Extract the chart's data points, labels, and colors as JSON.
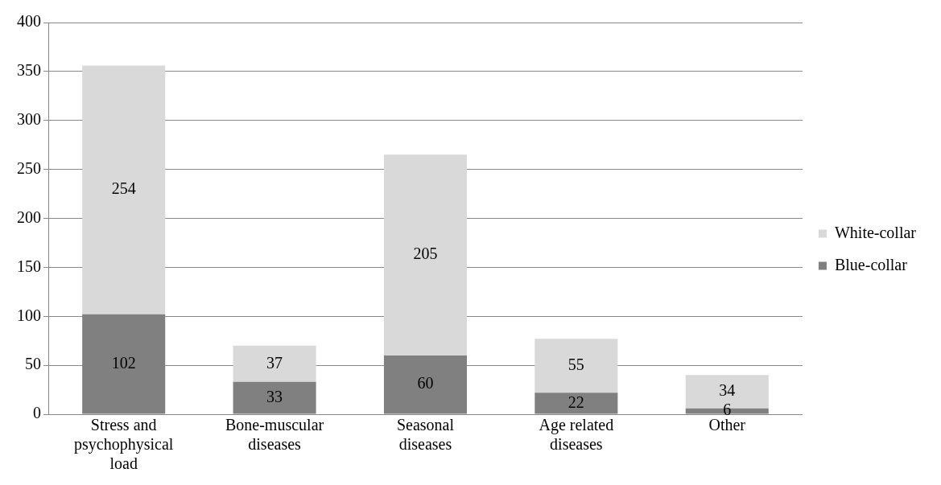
{
  "chart_data": {
    "type": "bar",
    "stacked": true,
    "categories": [
      "Stress and psychophysical load",
      "Bone-muscular diseases",
      "Seasonal diseases",
      "Age related diseases",
      "Other"
    ],
    "series": [
      {
        "name": "Blue-collar",
        "color": "#808080",
        "values": [
          102,
          33,
          60,
          22,
          6
        ]
      },
      {
        "name": "White-collar",
        "color": "#d9d9d9",
        "values": [
          254,
          37,
          205,
          55,
          34
        ]
      }
    ],
    "ylim": [
      0,
      400
    ],
    "yticks": [
      0,
      50,
      100,
      150,
      200,
      250,
      300,
      350,
      400
    ],
    "grid": "y",
    "legend": "right",
    "data_labels": true
  }
}
